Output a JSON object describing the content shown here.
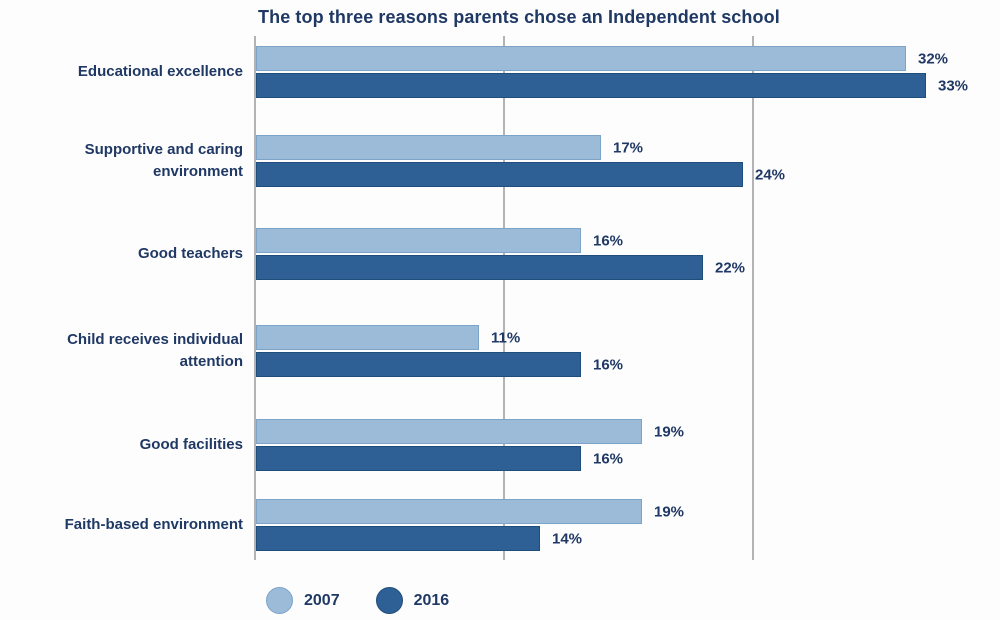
{
  "chart": {
    "title": "The top three reasons parents chose an Independent school",
    "legend": [
      {
        "label": "2007"
      },
      {
        "label": "2016"
      }
    ],
    "colors": {
      "text": "#1f3864",
      "gridline": "#b3b3b6",
      "series2007_fill": "#9bbbd9",
      "series2007_border": "#7da3c6",
      "series2016_fill": "#2e6096",
      "series2016_border": "#1f4e7c",
      "background": "#fdfdfe"
    }
  },
  "chart_data": {
    "type": "bar",
    "orientation": "horizontal",
    "title": "The top three reasons parents chose an Independent school",
    "categories": [
      "Educational excellence",
      "Supportive and caring environment",
      "Good teachers",
      "Child receives individual attention",
      "Good facilities",
      "Faith-based environment"
    ],
    "series": [
      {
        "name": "2007",
        "color": "#9bbbd9",
        "values": [
          32,
          17,
          16,
          11,
          19,
          19
        ]
      },
      {
        "name": "2016",
        "color": "#2e6096",
        "values": [
          33,
          24,
          22,
          16,
          16,
          14
        ]
      }
    ],
    "value_labels": [
      [
        "32%",
        "17%",
        "16%",
        "11%",
        "19%",
        "19%"
      ],
      [
        "33%",
        "24%",
        "22%",
        "16%",
        "16%",
        "14%"
      ]
    ],
    "unit": "percent",
    "xlabel": "",
    "ylabel": "",
    "xlim": [
      0,
      36.7
    ],
    "grid": true,
    "gridlines_x_values": [
      0,
      12.25,
      24.5
    ],
    "legend_position": "bottom-left",
    "value_labels_shown": true
  }
}
